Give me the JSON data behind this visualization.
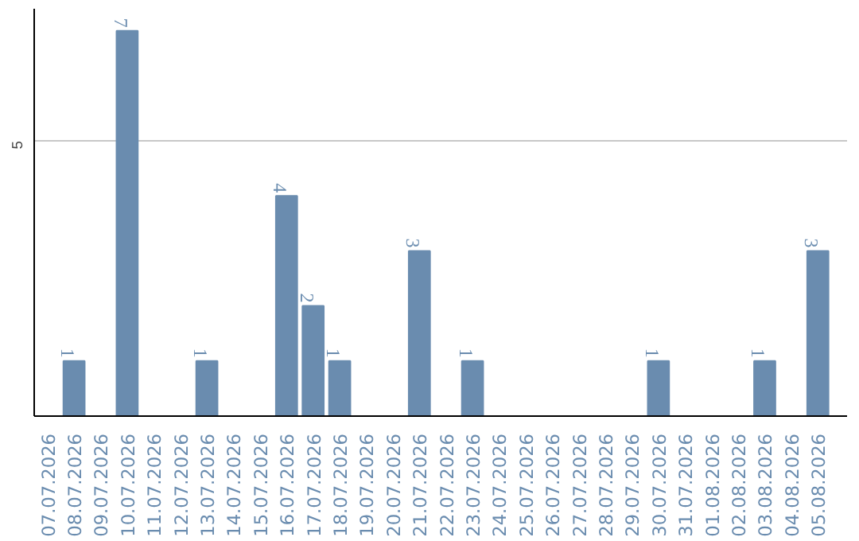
{
  "chart_data": {
    "type": "bar",
    "categories": [
      "07.07.2026",
      "08.07.2026",
      "09.07.2026",
      "10.07.2026",
      "11.07.2026",
      "12.07.2026",
      "13.07.2026",
      "14.07.2026",
      "15.07.2026",
      "16.07.2026",
      "17.07.2026",
      "18.07.2026",
      "19.07.2026",
      "20.07.2026",
      "21.07.2026",
      "22.07.2026",
      "23.07.2026",
      "24.07.2026",
      "25.07.2026",
      "26.07.2026",
      "27.07.2026",
      "28.07.2026",
      "29.07.2026",
      "30.07.2026",
      "31.07.2026",
      "01.08.2026",
      "02.08.2026",
      "03.08.2026",
      "04.08.2026",
      "05.08.2026"
    ],
    "values": [
      null,
      1,
      null,
      7,
      null,
      null,
      1,
      null,
      null,
      4,
      2,
      1,
      null,
      null,
      3,
      null,
      1,
      null,
      null,
      null,
      null,
      null,
      null,
      1,
      null,
      null,
      null,
      1,
      null,
      3
    ],
    "color": "#6a8caf",
    "ylim": [
      0,
      7.4
    ],
    "yticks": [
      5
    ],
    "grid": "y",
    "data_labels": true
  }
}
